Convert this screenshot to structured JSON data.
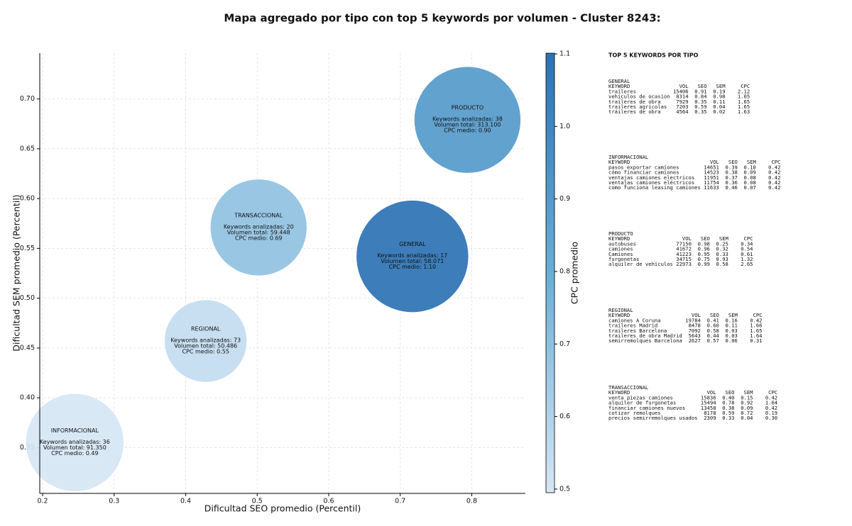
{
  "chart_data": {
    "type": "bubble",
    "title": "Mapa agregado por tipo con top 5 keywords por volumen - Cluster 8243:",
    "x_label": "Dificultad SEO promedio (Percentil)",
    "y_label": "Dificultad SEM promedio (Percentil)",
    "colorbar_label": "CPC promedio",
    "xlim": [
      0.196,
      0.875
    ],
    "ylim": [
      0.304,
      0.746
    ],
    "xticks": [
      0.2,
      0.3,
      0.4,
      0.5,
      0.6,
      0.7,
      0.8
    ],
    "yticks": [
      0.35,
      {
        "value": 0.4,
        "label": "0.40"
      },
      0.45,
      {
        "value": 0.5,
        "label": "0.50"
      },
      0.55,
      {
        "value": 0.6,
        "label": "0.60"
      },
      0.65,
      {
        "value": 0.7,
        "label": "0.70"
      }
    ],
    "clim": [
      0.495,
      1.101
    ],
    "cticks": [
      0.5,
      0.6,
      0.7,
      0.8,
      0.9,
      {
        "value": 1.0,
        "label": "1.0"
      },
      1.1
    ],
    "colormap": [
      "#d6e6f4",
      "#6aaed6",
      "#2c72b4"
    ],
    "grid": true,
    "points": [
      {
        "label": "PRODUCTO",
        "x": 0.794,
        "y": 0.679,
        "size": 75,
        "cpc": 0.9,
        "text": [
          "Keywords analizadas: 38",
          "Volumen total: 313.100",
          "CPC medio: 0.90"
        ]
      },
      {
        "label": "TRANSACCIONAL",
        "x": 0.502,
        "y": 0.571,
        "size": 68,
        "cpc": 0.69,
        "text": [
          "Keywords analizadas: 20",
          "Volumen total: 59.448",
          "CPC medio: 0.69"
        ]
      },
      {
        "label": "GENERAL",
        "x": 0.717,
        "y": 0.542,
        "size": 79,
        "cpc": 1.1,
        "text": [
          "Keywords analizadas: 17",
          "Volumen total: 58.071",
          "CPC medio: 1.10"
        ]
      },
      {
        "label": "REGIONAL",
        "x": 0.428,
        "y": 0.457,
        "size": 58,
        "cpc": 0.55,
        "text": [
          "Keywords analizadas: 73",
          "Volumen total: 50.486",
          "CPC medio: 0.55"
        ]
      },
      {
        "label": "INFORMACIONAL",
        "x": 0.245,
        "y": 0.355,
        "size": 69,
        "cpc": 0.49,
        "text": [
          "Keywords analizadas: 36",
          "Volumen total: 91.350",
          "CPC medio: 0.49"
        ]
      }
    ]
  },
  "keyword_panel": {
    "title": "TOP 5 KEYWORDS POR TIPO",
    "header": [
      "KEYWORD",
      "VOL",
      "SEO",
      "SEM",
      "CPC"
    ],
    "groups": [
      {
        "name": "GENERAL",
        "rows": [
          [
            "traileres",
            "15406",
            "0.91",
            "0.19",
            "2.12"
          ],
          [
            "vehiculos de ocasion",
            "8314",
            "0.84",
            "0.98",
            "1.05"
          ],
          [
            "traileres de obra",
            "7929",
            "0.35",
            "0.11",
            "1.65"
          ],
          [
            "traileres agricolas",
            "7203",
            "0.59",
            "0.04",
            "1.65"
          ],
          [
            "tráileres de obra",
            "4564",
            "0.35",
            "0.02",
            "1.63"
          ]
        ]
      },
      {
        "name": "INFORMACIONAL",
        "rows": [
          [
            "pasos exportar camiones",
            "14651",
            "0.39",
            "0.10",
            "0.42"
          ],
          [
            "cómo financiar camiones",
            "14523",
            "0.38",
            "0.09",
            "0.42"
          ],
          [
            "ventajas camiones electricos",
            "11951",
            "0.37",
            "0.08",
            "0.42"
          ],
          [
            "ventajas camiones eléctricos",
            "11754",
            "0.36",
            "0.08",
            "0.42"
          ],
          [
            "como funciona leasing camiones",
            "11633",
            "0.46",
            "0.07",
            "0.42"
          ]
        ]
      },
      {
        "name": "PRODUCTO",
        "rows": [
          [
            "autobuses",
            "77150",
            "0.98",
            "0.25",
            "0.34"
          ],
          [
            "camiones",
            "41672",
            "0.96",
            "0.32",
            "0.54"
          ],
          [
            "Camiones",
            "41223",
            "0.95",
            "0.33",
            "0.61"
          ],
          [
            "furgonetas",
            "34715",
            "0.75",
            "0.93",
            "1.32"
          ],
          [
            "alquiler de vehiculos",
            "22973",
            "0.99",
            "0.58",
            "2.65"
          ]
        ]
      },
      {
        "name": "REGIONAL",
        "rows": [
          [
            "camiones A Coruna",
            "19784",
            "0.41",
            "0.16",
            "0.42"
          ],
          [
            "traileres Madrid",
            "8478",
            "0.60",
            "0.11",
            "1.66"
          ],
          [
            "traileres Barcelona",
            "7092",
            "0.58",
            "0.03",
            "1.65"
          ],
          [
            "traileres de obra Madrid",
            "5643",
            "0.44",
            "0.03",
            "1.64"
          ],
          [
            "semirremolques Barcelona",
            "2627",
            "0.57",
            "0.06",
            "0.31"
          ]
        ]
      },
      {
        "name": "TRANSACCIONAL",
        "rows": [
          [
            "venta piezas camiones",
            "15836",
            "0.40",
            "0.15",
            "0.42"
          ],
          [
            "alquiler de furgonetas",
            "15494",
            "0.78",
            "0.92",
            "1.64"
          ],
          [
            "financiar camiones nuevos",
            "13458",
            "0.38",
            "0.09",
            "0.42"
          ],
          [
            "cotizar remolques",
            "8178",
            "0.59",
            "0.72",
            "0.19"
          ],
          [
            "precios semirremolques usados",
            "2309",
            "0.33",
            "0.04",
            "0.30"
          ]
        ]
      }
    ]
  }
}
